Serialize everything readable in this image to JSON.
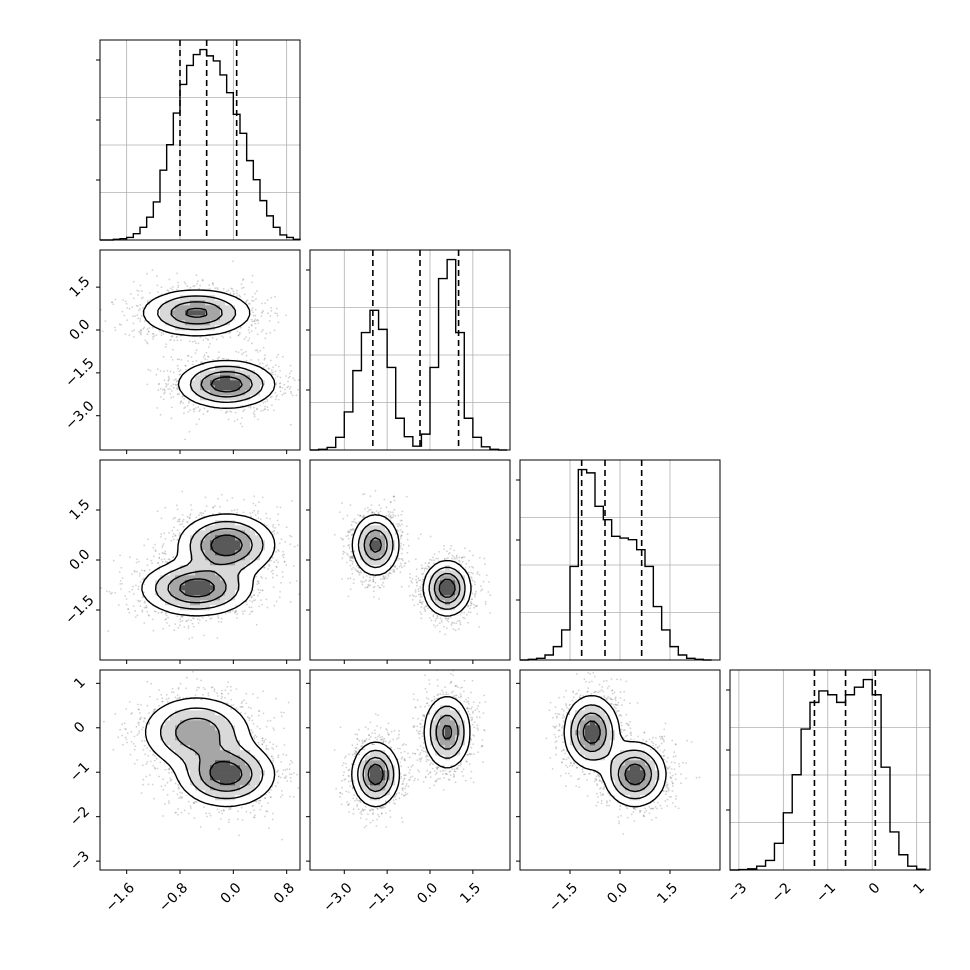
{
  "chart_data": {
    "type": "corner",
    "n_params": 4,
    "quantile_style": "dashed",
    "grid": true,
    "params": [
      {
        "range": [
          -2.0,
          1.0
        ],
        "ticks": [
          -1.6,
          -0.8,
          0.0,
          0.8
        ],
        "tick_labels": [
          "−1.6",
          "−0.8",
          "0.0",
          "0.8"
        ],
        "quantiles": [
          -0.8,
          -0.4,
          0.05
        ],
        "hist": {
          "edges": [
            -2.0,
            -1.9,
            -1.8,
            -1.7,
            -1.6,
            -1.5,
            -1.4,
            -1.3,
            -1.2,
            -1.1,
            -1.0,
            -0.9,
            -0.8,
            -0.7,
            -0.6,
            -0.5,
            -0.4,
            -0.3,
            -0.2,
            -0.1,
            0.0,
            0.1,
            0.2,
            0.3,
            0.4,
            0.5,
            0.6,
            0.7,
            0.8,
            0.9,
            1.0
          ],
          "counts": [
            0,
            0,
            1,
            2,
            4,
            10,
            20,
            36,
            60,
            110,
            150,
            200,
            245,
            275,
            292,
            300,
            290,
            282,
            260,
            232,
            198,
            168,
            125,
            95,
            62,
            38,
            20,
            8,
            4,
            1
          ]
        }
      },
      {
        "range": [
          -4.2,
          2.8
        ],
        "ticks": [
          -3.0,
          -1.5,
          0.0,
          1.5
        ],
        "tick_labels": [
          "−3.0",
          "−1.5",
          "0.0",
          "1.5"
        ],
        "quantiles": [
          -2.0,
          -0.35,
          1.0
        ],
        "hist": {
          "edges": [
            -4.2,
            -3.9,
            -3.6,
            -3.3,
            -3.0,
            -2.7,
            -2.4,
            -2.1,
            -1.8,
            -1.5,
            -1.2,
            -0.9,
            -0.6,
            -0.3,
            0.0,
            0.3,
            0.6,
            0.9,
            1.2,
            1.5,
            1.8,
            2.1,
            2.4,
            2.7
          ],
          "counts": [
            0,
            2,
            8,
            40,
            120,
            250,
            370,
            440,
            380,
            260,
            100,
            42,
            12,
            50,
            260,
            540,
            600,
            370,
            100,
            40,
            10,
            2,
            0
          ]
        }
      },
      {
        "range": [
          -3.0,
          3.0
        ],
        "ticks": [
          -1.5,
          0.0,
          1.5
        ],
        "tick_labels": [
          "−1.5",
          "0.0",
          "1.5"
        ],
        "quantiles": [
          -1.15,
          -0.45,
          0.65
        ],
        "hist": {
          "edges": [
            -3.0,
            -2.75,
            -2.5,
            -2.25,
            -2.0,
            -1.75,
            -1.5,
            -1.25,
            -1.0,
            -0.75,
            -0.5,
            -0.25,
            0.0,
            0.25,
            0.5,
            0.75,
            1.0,
            1.25,
            1.5,
            1.75,
            2.0,
            2.25,
            2.5,
            2.75
          ],
          "counts": [
            0,
            2,
            5,
            15,
            40,
            90,
            280,
            570,
            560,
            460,
            420,
            370,
            365,
            360,
            330,
            280,
            160,
            90,
            40,
            15,
            5,
            2,
            0
          ]
        }
      },
      {
        "range": [
          -3.2,
          1.3
        ],
        "ticks": [
          -3,
          -2,
          -1,
          0,
          1
        ],
        "tick_labels": [
          "−3",
          "−2",
          "−1",
          "0",
          "1"
        ],
        "quantiles": [
          -1.3,
          -0.6,
          0.07
        ],
        "hist": {
          "edges": [
            -3.2,
            -3.0,
            -2.8,
            -2.6,
            -2.4,
            -2.2,
            -2.0,
            -1.8,
            -1.6,
            -1.4,
            -1.2,
            -1.0,
            -0.8,
            -0.6,
            -0.4,
            -0.2,
            0.0,
            0.2,
            0.4,
            0.6,
            0.8,
            1.0,
            1.2
          ],
          "counts": [
            0,
            1,
            3,
            10,
            25,
            70,
            150,
            250,
            370,
            440,
            470,
            460,
            440,
            460,
            480,
            500,
            460,
            270,
            100,
            40,
            10,
            2
          ]
        }
      }
    ],
    "y_tick_labels_left": [
      {
        "row": 1,
        "ticks": [
          -3.0,
          -1.5,
          0.0,
          1.5
        ],
        "labels": [
          "−3.0",
          "−1.5",
          "0.0",
          "1.5"
        ]
      },
      {
        "row": 2,
        "ticks": [
          -1.5,
          0.0,
          1.5
        ],
        "labels": [
          "−1.5",
          "0.0",
          "1.5"
        ]
      },
      {
        "row": 3,
        "ticks": [
          -3,
          -2,
          -1,
          0,
          1
        ],
        "labels": [
          "−3",
          "−2",
          "−1",
          "0",
          "1"
        ]
      }
    ],
    "components": [
      {
        "weight": 0.5,
        "mean": [
          -0.55,
          0.6,
          -0.85,
          -0.1
        ],
        "sd": [
          0.4,
          0.4,
          0.4,
          0.4
        ]
      },
      {
        "weight": 0.5,
        "mean": [
          -0.1,
          -1.9,
          0.45,
          -1.05
        ],
        "sd": [
          0.35,
          0.4,
          0.45,
          0.35
        ]
      }
    ]
  }
}
